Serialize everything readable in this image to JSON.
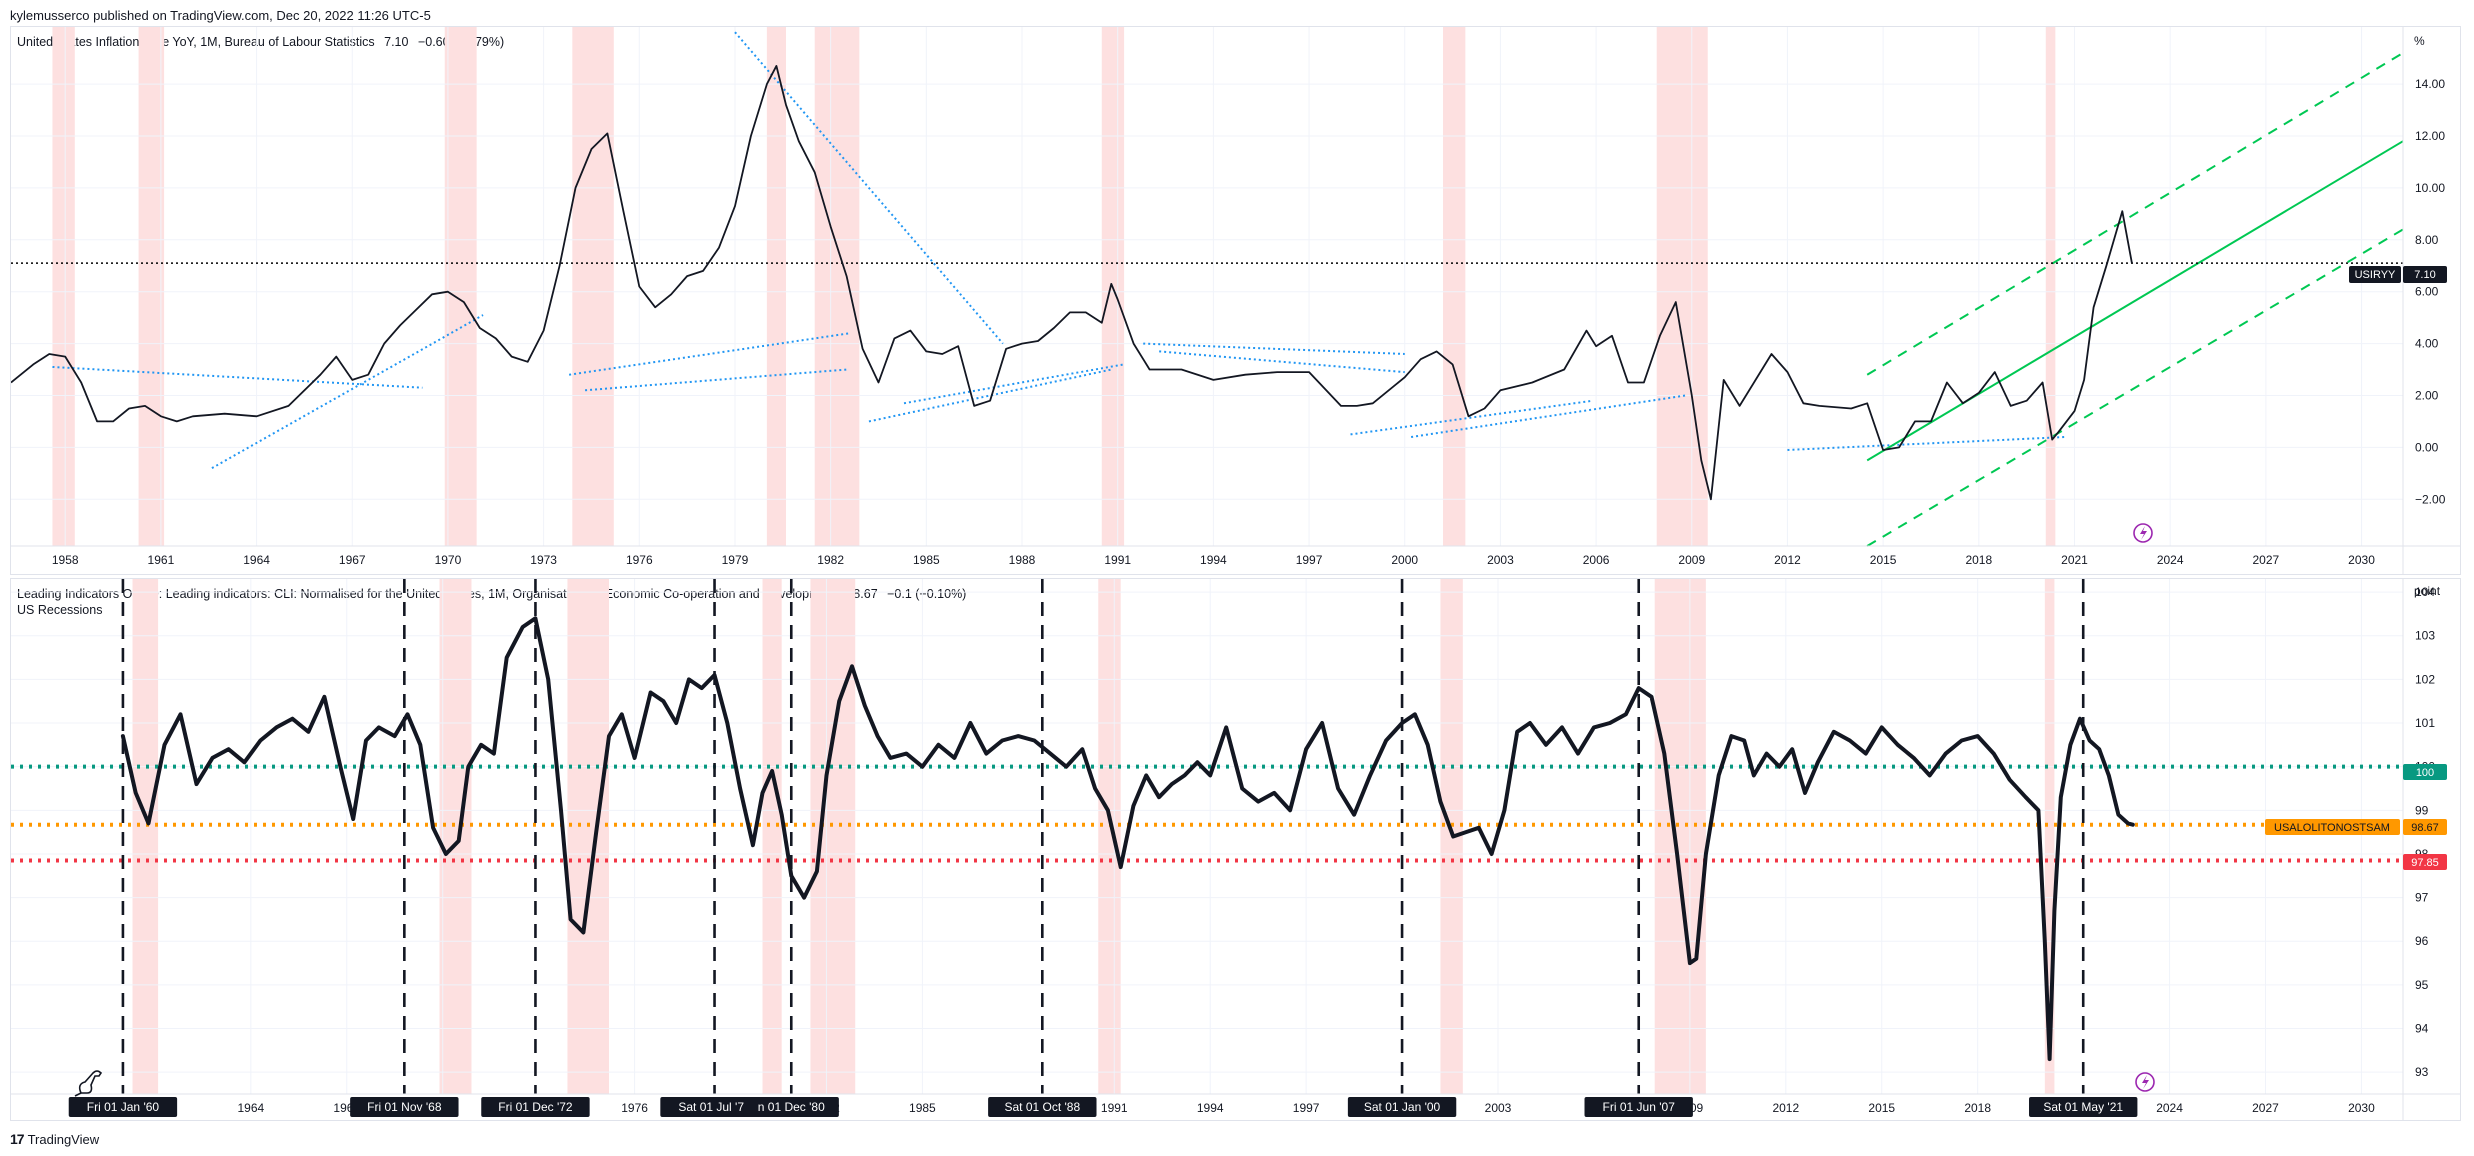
{
  "header": {
    "published": "kylemusserco published on TradingView.com, Dec 20, 2022 11:26 UTC-5"
  },
  "footer": {
    "brand": "TradingView",
    "logo": "17"
  },
  "top_pane": {
    "title": "United States Inflation Rate YoY, 1M, Bureau of Labour Statistics",
    "last": "7.10",
    "change": "−0.60 (−7.79%)",
    "unit": "%",
    "price_tag_symbol": "USIRYY",
    "price_tag_value": "7.10"
  },
  "bottom_pane": {
    "title": "Leading Indicators OECD: Leading indicators: CLI: Normalised for the United States, 1M, Organisation for Economic Co-operation and Development",
    "last": "98.67",
    "change": "−0.1 (−0.10%)",
    "subtitle": "US Recessions",
    "unit": "point",
    "tag_100": "100",
    "tag_symbol": "USALOLITONOSTSAM",
    "tag_value": "98.67",
    "tag_9785": "97.85"
  },
  "colors": {
    "recession": "#fde0e0",
    "trend_blue": "#2196f3",
    "channel_green": "#00c853",
    "line_teal": "#089981",
    "line_orange": "#ff9800",
    "line_red": "#f23645",
    "tag_dark": "#131722"
  },
  "icons": [
    "dino-icon",
    "lightning-icon"
  ],
  "chart_data": [
    {
      "type": "line",
      "title": "United States Inflation Rate YoY, 1M, Bureau of Labour Statistics",
      "ylabel": "%",
      "ylim": [
        -3.8,
        16.2
      ],
      "xlim": [
        1956.3,
        2031.3
      ],
      "yticks": [
        "−2.00",
        "0.00",
        "2.00",
        "4.00",
        "6.00",
        "8.00",
        "10.00",
        "12.00",
        "14.00"
      ],
      "ytick_values": [
        -2,
        0,
        2,
        4,
        6,
        8,
        10,
        12,
        14
      ],
      "xticks": [
        "1958",
        "1961",
        "1964",
        "1967",
        "1970",
        "1973",
        "1976",
        "1979",
        "1982",
        "1985",
        "1988",
        "1991",
        "1994",
        "1997",
        "2000",
        "2003",
        "2006",
        "2009",
        "2012",
        "2015",
        "2018",
        "2021",
        "2024",
        "2027",
        "2030"
      ],
      "xtick_values": [
        1958,
        1961,
        1964,
        1967,
        1970,
        1973,
        1976,
        1979,
        1982,
        1985,
        1988,
        1991,
        1994,
        1997,
        2000,
        2003,
        2006,
        2009,
        2012,
        2015,
        2018,
        2021,
        2024,
        2027,
        2030
      ],
      "recessions": [
        [
          1957.6,
          1958.3
        ],
        [
          1960.3,
          1961.1
        ],
        [
          1969.9,
          1970.9
        ],
        [
          1973.9,
          1975.2
        ],
        [
          1980.0,
          1980.6
        ],
        [
          1981.5,
          1982.9
        ],
        [
          1990.5,
          1991.2
        ],
        [
          2001.2,
          2001.9
        ],
        [
          2007.9,
          2009.5
        ],
        [
          2020.1,
          2020.4
        ]
      ],
      "series": [
        {
          "name": "USIRYY",
          "x": [
            1956.3,
            1957.0,
            1957.5,
            1958.0,
            1958.5,
            1959.0,
            1959.5,
            1960.0,
            1960.5,
            1961.0,
            1961.5,
            1962.0,
            1963.0,
            1964.0,
            1965.0,
            1966.0,
            1966.5,
            1967.0,
            1967.5,
            1968.0,
            1968.5,
            1969.0,
            1969.5,
            1970.0,
            1970.5,
            1971.0,
            1971.5,
            1972.0,
            1972.5,
            1973.0,
            1973.5,
            1974.0,
            1974.5,
            1975.0,
            1975.5,
            1976.0,
            1976.5,
            1977.0,
            1977.5,
            1978.0,
            1978.5,
            1979.0,
            1979.5,
            1980.0,
            1980.3,
            1980.6,
            1981.0,
            1981.5,
            1982.0,
            1982.5,
            1983.0,
            1983.5,
            1984.0,
            1984.5,
            1985.0,
            1985.5,
            1986.0,
            1986.5,
            1987.0,
            1987.5,
            1988.0,
            1988.5,
            1989.0,
            1989.5,
            1990.0,
            1990.5,
            1990.8,
            1991.0,
            1991.5,
            1992.0,
            1993.0,
            1994.0,
            1995.0,
            1996.0,
            1997.0,
            1998.0,
            1998.5,
            1999.0,
            2000.0,
            2000.5,
            2001.0,
            2001.5,
            2002.0,
            2002.5,
            2003.0,
            2004.0,
            2005.0,
            2005.7,
            2006.0,
            2006.5,
            2007.0,
            2007.5,
            2008.0,
            2008.5,
            2009.0,
            2009.3,
            2009.6,
            2010.0,
            2010.5,
            2011.0,
            2011.5,
            2012.0,
            2012.5,
            2013.0,
            2014.0,
            2014.5,
            2015.0,
            2015.5,
            2016.0,
            2016.5,
            2017.0,
            2017.5,
            2018.0,
            2018.5,
            2019.0,
            2019.5,
            2020.0,
            2020.3,
            2020.5,
            2021.0,
            2021.3,
            2021.6,
            2022.0,
            2022.5,
            2022.8
          ],
          "y": [
            2.5,
            3.2,
            3.6,
            3.5,
            2.5,
            1.0,
            1.0,
            1.5,
            1.6,
            1.2,
            1.0,
            1.2,
            1.3,
            1.2,
            1.6,
            2.8,
            3.5,
            2.6,
            2.8,
            4.0,
            4.7,
            5.3,
            5.9,
            6.0,
            5.6,
            4.6,
            4.2,
            3.5,
            3.3,
            4.5,
            7.0,
            10.0,
            11.5,
            12.1,
            9.1,
            6.2,
            5.4,
            5.9,
            6.6,
            6.8,
            7.7,
            9.3,
            12.0,
            14.0,
            14.7,
            13.2,
            11.8,
            10.6,
            8.5,
            6.6,
            3.8,
            2.5,
            4.2,
            4.5,
            3.7,
            3.6,
            3.9,
            1.6,
            1.8,
            3.8,
            4.0,
            4.1,
            4.6,
            5.2,
            5.2,
            4.8,
            6.3,
            5.7,
            4.0,
            3.0,
            3.0,
            2.6,
            2.8,
            2.9,
            2.9,
            1.6,
            1.6,
            1.7,
            2.7,
            3.4,
            3.7,
            3.2,
            1.2,
            1.5,
            2.2,
            2.5,
            3.0,
            4.5,
            3.9,
            4.3,
            2.5,
            2.5,
            4.3,
            5.6,
            2.0,
            -0.5,
            -2.0,
            2.6,
            1.6,
            2.6,
            3.6,
            2.9,
            1.7,
            1.6,
            1.5,
            1.7,
            -0.1,
            0.0,
            1.0,
            1.0,
            2.5,
            1.7,
            2.1,
            2.9,
            1.6,
            1.8,
            2.5,
            0.3,
            0.6,
            1.4,
            2.6,
            5.4,
            7.0,
            9.1,
            7.1
          ]
        }
      ],
      "last_value": 7.1,
      "reference_lines": [
        {
          "type": "dotted-horizontal",
          "y": 7.1,
          "color": "#000000"
        }
      ],
      "annotations": {
        "blue_trendlines": [
          [
            1957.6,
            3.1,
            1969.2,
            2.3
          ],
          [
            1962.6,
            -0.8,
            1971.1,
            5.1
          ],
          [
            1973.8,
            2.8,
            1982.6,
            4.4
          ],
          [
            1974.3,
            2.2,
            1982.5,
            3.0
          ],
          [
            1979.0,
            16.0,
            1987.4,
            4.0
          ],
          [
            1983.2,
            1.0,
            1990.8,
            3.0
          ],
          [
            1984.3,
            1.7,
            1991.2,
            3.2
          ],
          [
            1991.8,
            4.0,
            2000.0,
            3.6
          ],
          [
            1992.3,
            3.7,
            2000.0,
            2.9
          ],
          [
            1998.3,
            0.5,
            2005.9,
            1.8
          ],
          [
            2000.2,
            0.4,
            2008.8,
            2.0
          ],
          [
            2012.0,
            -0.1,
            2020.7,
            0.4
          ]
        ],
        "green_channel": {
          "center": [
            2014.5,
            -0.5,
            2031.3,
            11.8
          ],
          "upper": [
            2014.5,
            2.8,
            2031.3,
            15.2
          ],
          "lower": [
            2014.5,
            -3.8,
            2031.3,
            8.4
          ]
        }
      }
    },
    {
      "type": "line",
      "title": "Leading Indicators OECD: Leading indicators: CLI: Normalised for the United States, 1M, Organisation for Economic Co-operation and Development",
      "ylabel": "point",
      "ylim": [
        92.5,
        104.3
      ],
      "xlim": [
        1956.5,
        2031.3
      ],
      "yticks": [
        "93",
        "94",
        "95",
        "96",
        "97",
        "98",
        "99",
        "100",
        "101",
        "102",
        "103",
        "104"
      ],
      "ytick_values": [
        93,
        94,
        95,
        96,
        97,
        98,
        99,
        100,
        101,
        102,
        103,
        104
      ],
      "xticks": [
        "1964",
        "1967",
        "1970",
        "1976",
        "1982",
        "1985",
        "1991",
        "1994",
        "1997",
        "2003",
        "2009",
        "2012",
        "2015",
        "2018",
        "2024",
        "2027",
        "2030"
      ],
      "xtick_values": [
        1964,
        1967,
        1970,
        1976,
        1982,
        1985,
        1991,
        1994,
        1997,
        2003,
        2009,
        2012,
        2015,
        2018,
        2024,
        2027,
        2030
      ],
      "date_markers": [
        {
          "x": 1960.0,
          "label": "Fri 01 Jan '60"
        },
        {
          "x": 1968.8,
          "label": "Fri 01 Nov '68"
        },
        {
          "x": 1972.9,
          "label": "Fri 01 Dec '72"
        },
        {
          "x": 1978.5,
          "label": "Sat 01 Jul '78"
        },
        {
          "x": 1980.9,
          "label": "n 01 Dec '80"
        },
        {
          "x": 1988.75,
          "label": "Sat 01 Oct '88"
        },
        {
          "x": 2000.0,
          "label": "Sat 01 Jan '00"
        },
        {
          "x": 2007.4,
          "label": "Fri 01 Jun '07"
        },
        {
          "x": 2021.3,
          "label": "Sat 01 May '21"
        }
      ],
      "recessions": [
        [
          1960.3,
          1961.1
        ],
        [
          1969.9,
          1970.9
        ],
        [
          1973.9,
          1975.2
        ],
        [
          1980.0,
          1980.6
        ],
        [
          1981.5,
          1982.9
        ],
        [
          1990.5,
          1991.2
        ],
        [
          2001.2,
          2001.9
        ],
        [
          2007.9,
          2009.5
        ],
        [
          2020.1,
          2020.4
        ]
      ],
      "series": [
        {
          "name": "USALOLITONOSTSAM",
          "x": [
            1960.0,
            1960.4,
            1960.8,
            1961.3,
            1961.8,
            1962.3,
            1962.8,
            1963.3,
            1963.8,
            1964.3,
            1964.8,
            1965.3,
            1965.8,
            1966.3,
            1966.8,
            1967.2,
            1967.6,
            1968.0,
            1968.5,
            1968.9,
            1969.3,
            1969.7,
            1970.1,
            1970.5,
            1970.8,
            1971.2,
            1971.6,
            1972.0,
            1972.5,
            1972.9,
            1973.3,
            1973.7,
            1974.0,
            1974.4,
            1974.8,
            1975.2,
            1975.6,
            1976.0,
            1976.5,
            1976.9,
            1977.3,
            1977.7,
            1978.1,
            1978.5,
            1978.9,
            1979.3,
            1979.7,
            1980.0,
            1980.3,
            1980.6,
            1980.9,
            1981.3,
            1981.7,
            1982.0,
            1982.4,
            1982.8,
            1983.2,
            1983.6,
            1984.0,
            1984.5,
            1985.0,
            1985.5,
            1986.0,
            1986.5,
            1987.0,
            1987.5,
            1988.0,
            1988.5,
            1989.0,
            1989.5,
            1990.0,
            1990.4,
            1990.8,
            1991.2,
            1991.6,
            1992.0,
            1992.4,
            1992.8,
            1993.2,
            1993.6,
            1994.0,
            1994.5,
            1995.0,
            1995.5,
            1996.0,
            1996.5,
            1997.0,
            1997.5,
            1998.0,
            1998.5,
            1999.0,
            1999.5,
            2000.0,
            2000.4,
            2000.8,
            2001.2,
            2001.6,
            2002.0,
            2002.4,
            2002.8,
            2003.2,
            2003.6,
            2004.0,
            2004.5,
            2005.0,
            2005.5,
            2006.0,
            2006.5,
            2007.0,
            2007.4,
            2007.8,
            2008.2,
            2008.6,
            2009.0,
            2009.2,
            2009.5,
            2009.9,
            2010.3,
            2010.7,
            2011.0,
            2011.4,
            2011.8,
            2012.2,
            2012.6,
            2013.0,
            2013.5,
            2014.0,
            2014.5,
            2015.0,
            2015.5,
            2016.0,
            2016.5,
            2017.0,
            2017.5,
            2018.0,
            2018.5,
            2019.0,
            2019.5,
            2019.9,
            2020.1,
            2020.25,
            2020.4,
            2020.6,
            2020.9,
            2021.2,
            2021.5,
            2021.8,
            2022.1,
            2022.4,
            2022.7,
            2022.85
          ],
          "y": [
            100.7,
            99.4,
            98.7,
            100.5,
            101.2,
            99.6,
            100.2,
            100.4,
            100.1,
            100.6,
            100.9,
            101.1,
            100.8,
            101.6,
            100.0,
            98.8,
            100.6,
            100.9,
            100.7,
            101.2,
            100.5,
            98.6,
            98.0,
            98.3,
            100.0,
            100.5,
            100.3,
            102.5,
            103.2,
            103.4,
            102.0,
            99.0,
            96.5,
            96.2,
            98.5,
            100.7,
            101.2,
            100.2,
            101.7,
            101.5,
            101.0,
            102.0,
            101.8,
            102.1,
            101.0,
            99.5,
            98.2,
            99.4,
            99.9,
            98.9,
            97.5,
            97.0,
            97.6,
            99.8,
            101.5,
            102.3,
            101.4,
            100.7,
            100.2,
            100.3,
            100.0,
            100.5,
            100.2,
            101.0,
            100.3,
            100.6,
            100.7,
            100.6,
            100.3,
            100.0,
            100.4,
            99.5,
            99.0,
            97.7,
            99.1,
            99.8,
            99.3,
            99.6,
            99.8,
            100.1,
            99.8,
            100.9,
            99.5,
            99.2,
            99.4,
            99.0,
            100.4,
            101.0,
            99.5,
            98.9,
            99.8,
            100.6,
            101.0,
            101.2,
            100.5,
            99.2,
            98.4,
            98.5,
            98.6,
            98.0,
            99.0,
            100.8,
            101.0,
            100.5,
            100.9,
            100.3,
            100.9,
            101.0,
            101.2,
            101.8,
            101.6,
            100.3,
            98.0,
            95.5,
            95.6,
            98.0,
            99.8,
            100.7,
            100.6,
            99.8,
            100.3,
            100.0,
            100.4,
            99.4,
            100.1,
            100.8,
            100.6,
            100.3,
            100.9,
            100.5,
            100.2,
            99.8,
            100.3,
            100.6,
            100.7,
            100.3,
            99.7,
            99.3,
            99.0,
            96.0,
            93.3,
            96.7,
            99.3,
            100.5,
            101.1,
            100.6,
            100.4,
            99.8,
            98.9,
            98.7,
            98.67
          ]
        }
      ],
      "last_value": 98.67,
      "reference_lines": [
        {
          "y": 100.0,
          "color": "#089981"
        },
        {
          "y": 98.67,
          "color": "#ff9800"
        },
        {
          "y": 97.85,
          "color": "#f23645"
        }
      ]
    }
  ]
}
